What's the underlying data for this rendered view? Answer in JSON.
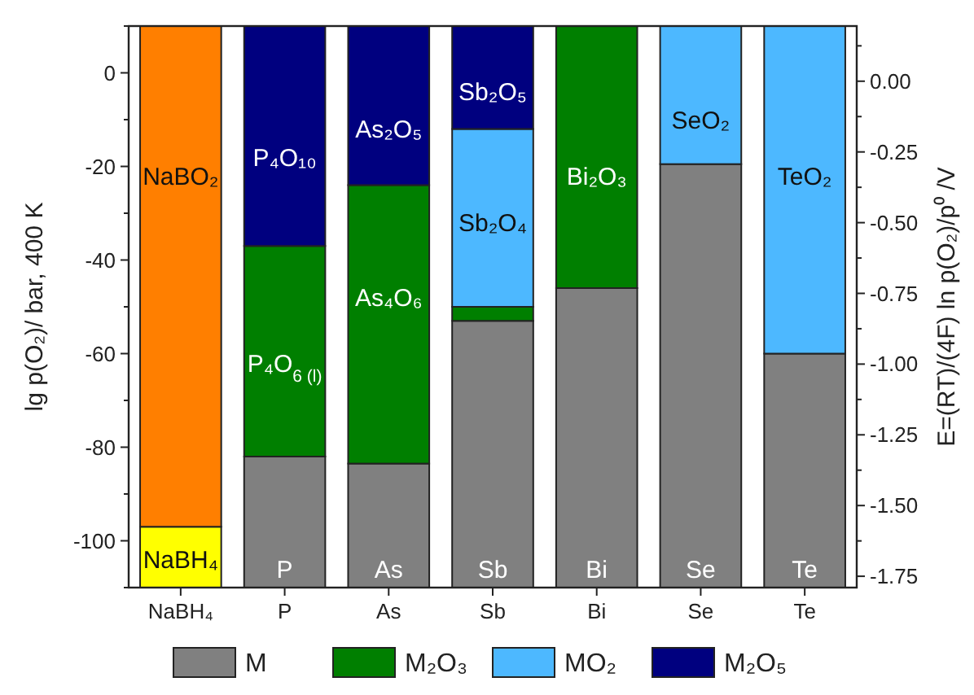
{
  "chart_data": {
    "type": "bar",
    "legend": "bottom",
    "grid": false,
    "categories": [
      "NaBH₄",
      "P",
      "As",
      "Sb",
      "Bi",
      "Se",
      "Te"
    ],
    "ylabel": "lg p(O₂)/ bar, 400 K",
    "y2label": "E=(RT)/(4F) ln p(O₂)/p⁰ /V",
    "ylim": [
      -110,
      10
    ],
    "yticks": [
      {
        "value": -110,
        "label": null
      },
      -100,
      {
        "value": -90,
        "label": null
      },
      -80,
      {
        "value": -70,
        "label": null
      },
      -60,
      {
        "value": -50,
        "label": null
      },
      -40,
      {
        "value": -30,
        "label": null
      },
      -20,
      {
        "value": -10,
        "label": null
      },
      0,
      {
        "value": 10,
        "label": null
      }
    ],
    "y2lim": [
      -1.79,
      0.195
    ],
    "y2ticks": [
      {
        "value": -1.75,
        "label": "-1.75"
      },
      {
        "value": -1.625,
        "label": null
      },
      {
        "value": -1.5,
        "label": "-1.50"
      },
      {
        "value": -1.375,
        "label": null
      },
      {
        "value": -1.25,
        "label": "-1.25"
      },
      {
        "value": -1.125,
        "label": null
      },
      {
        "value": -1,
        "label": "-1.00"
      },
      {
        "value": -0.875,
        "label": null
      },
      {
        "value": -0.75,
        "label": "-0.75"
      },
      {
        "value": -0.625,
        "label": null
      },
      {
        "value": -0.5,
        "label": "-0.50"
      },
      {
        "value": -0.375,
        "label": null
      },
      {
        "value": -0.25,
        "label": "-0.25"
      },
      {
        "value": -0.125,
        "label": null
      },
      {
        "value": 0,
        "label": "0.00"
      },
      {
        "value": 0.125,
        "label": null
      }
    ],
    "series": [
      {
        "name": "M",
        "color": "#808080",
        "colors": [
          "#ffff00",
          "#808080",
          "#808080",
          "#808080",
          "#808080",
          "#808080",
          "#808080"
        ],
        "base": [
          -110,
          -110,
          -110,
          -110,
          -110,
          -110,
          -110
        ],
        "values": [
          13,
          28,
          26.5,
          57,
          64,
          90.5,
          50
        ]
      },
      {
        "name": "M₂O₃",
        "color": "#007f00",
        "base": [
          null,
          -82,
          -83.5,
          -53,
          -46,
          null,
          null
        ],
        "values": [
          null,
          45,
          59.5,
          3,
          56,
          null,
          null
        ]
      },
      {
        "name": "MO₂",
        "color": "#4db8ff",
        "base": [
          null,
          null,
          null,
          -50,
          null,
          -19.5,
          -60
        ],
        "values": [
          null,
          null,
          null,
          38,
          null,
          29.5,
          70
        ]
      },
      {
        "name": "M₂O₅",
        "color": "#00007f",
        "colors": [
          "#ff7f00",
          "#00007f",
          "#00007f",
          "#00007f",
          null,
          null,
          null
        ],
        "base": [
          -97,
          -37,
          -24,
          -12,
          null,
          null,
          null
        ],
        "values": [
          107,
          47,
          34,
          22,
          null,
          null,
          null
        ]
      }
    ],
    "annotations": [
      "NaBO₂",
      "NaBH₄",
      "P₄O₁₀",
      "P₄O$_{6 (l)}$",
      "P",
      "As₂O₅",
      "As₄O₆",
      "As",
      "Sb₂O₅",
      "Sb₂O₄",
      "Sb",
      "Bi₂O₃",
      "Bi",
      "SeO₂",
      "Se",
      "TeO₂",
      "Te"
    ]
  }
}
